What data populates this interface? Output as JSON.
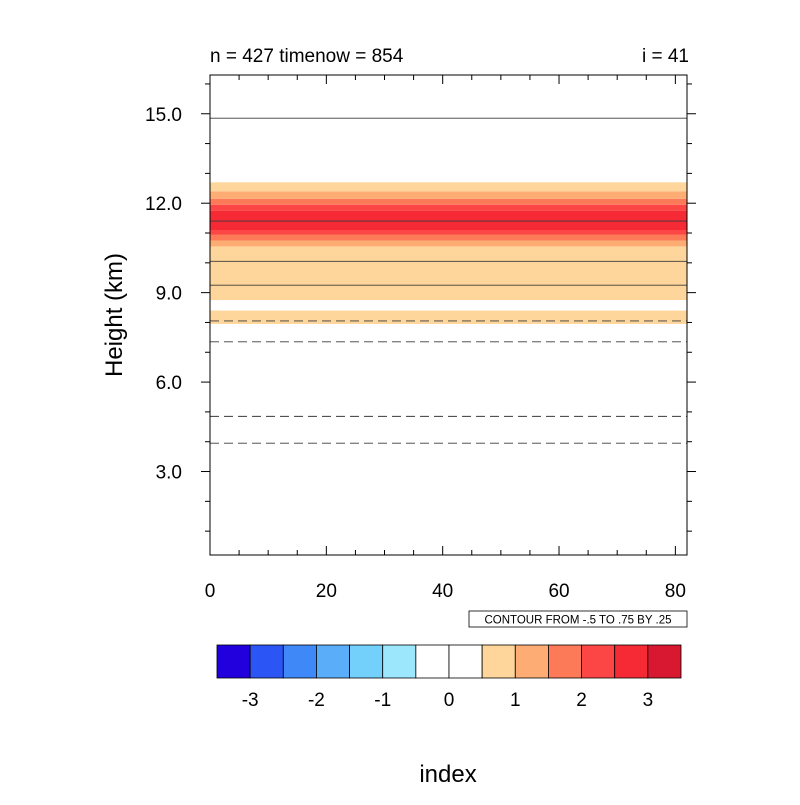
{
  "chart_data": {
    "type": "heatmap",
    "title_left": "n = 427 timenow = 854",
    "title_right": "i = 41",
    "xlabel": "index",
    "ylabel": "Height (km)",
    "xlim": [
      0,
      82
    ],
    "ylim": [
      0.2,
      16.3
    ],
    "x_ticks": [
      0,
      20,
      40,
      60,
      80
    ],
    "x_tick_labels": [
      "0",
      "20",
      "40",
      "60",
      "80"
    ],
    "y_ticks": [
      3,
      6,
      9,
      12,
      15
    ],
    "y_tick_labels": [
      "3.0",
      "6.0",
      "9.0",
      "12.0",
      "15.0"
    ],
    "fill_bands": [
      {
        "y0": 7.95,
        "y1": 8.4,
        "level": 1
      },
      {
        "y0": 8.75,
        "y1": 10.55,
        "level": 1
      },
      {
        "y0": 10.55,
        "y1": 10.75,
        "level": 2
      },
      {
        "y0": 10.75,
        "y1": 10.95,
        "level": 3
      },
      {
        "y0": 10.95,
        "y1": 11.1,
        "level": 4
      },
      {
        "y0": 11.1,
        "y1": 11.75,
        "level": 5
      },
      {
        "y0": 11.75,
        "y1": 11.95,
        "level": 4
      },
      {
        "y0": 11.95,
        "y1": 12.15,
        "level": 3
      },
      {
        "y0": 12.15,
        "y1": 12.4,
        "level": 2
      },
      {
        "y0": 12.4,
        "y1": 12.7,
        "level": 1
      }
    ],
    "contour_lines": [
      {
        "y": 14.85,
        "style": "solid"
      },
      {
        "y": 11.4,
        "style": "solid"
      },
      {
        "y": 10.05,
        "style": "solid"
      },
      {
        "y": 9.25,
        "style": "solid"
      },
      {
        "y": 8.05,
        "style": "dashed"
      },
      {
        "y": 7.35,
        "style": "dashed"
      },
      {
        "y": 4.85,
        "style": "dashed"
      },
      {
        "y": 3.95,
        "style": "dashed"
      }
    ],
    "contour_info": "CONTOUR FROM -.5 TO .75 BY .25",
    "colorbar": {
      "colors": [
        "#2200dd",
        "#2b55f5",
        "#3f88f8",
        "#5aaef9",
        "#72d0fb",
        "#9de7fd",
        "#ffffff",
        "#ffffff",
        "#fed69b",
        "#fdac73",
        "#fc7a58",
        "#fc4545",
        "#f52a35",
        "#d81830"
      ],
      "tick_labels": [
        "-3",
        "-2",
        "-1",
        "0",
        "1",
        "2",
        "3"
      ]
    }
  }
}
